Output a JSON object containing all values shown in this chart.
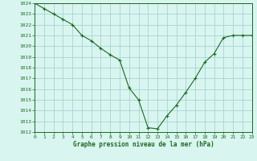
{
  "hours": [
    0,
    1,
    2,
    3,
    4,
    5,
    6,
    7,
    8,
    9,
    10,
    11,
    12,
    13,
    14,
    15,
    16,
    17,
    18,
    19,
    20,
    21,
    22,
    23
  ],
  "pressure": [
    1024.0,
    1023.5,
    1023.0,
    1022.5,
    1022.0,
    1021.0,
    1020.5,
    1019.8,
    1019.2,
    1018.7,
    1016.1,
    1015.0,
    1012.4,
    1012.3,
    1013.5,
    1014.5,
    1015.7,
    1017.0,
    1018.5,
    1019.3,
    1020.8,
    1021.0,
    1021.0,
    1021.0
  ],
  "line_color": "#1a6b1a",
  "marker_color": "#1a6b1a",
  "bg_color": "#d8f5f0",
  "grid_color": "#9ecece",
  "axis_label_color": "#1a6b1a",
  "tick_color": "#1a6b1a",
  "xlabel": "Graphe pression niveau de la mer (hPa)",
  "ylim_min": 1012,
  "ylim_max": 1024,
  "xlim_min": 0,
  "xlim_max": 23,
  "ytick_step": 1,
  "xtick_step": 1,
  "tick_fontsize": 4.5,
  "xlabel_fontsize": 5.5
}
